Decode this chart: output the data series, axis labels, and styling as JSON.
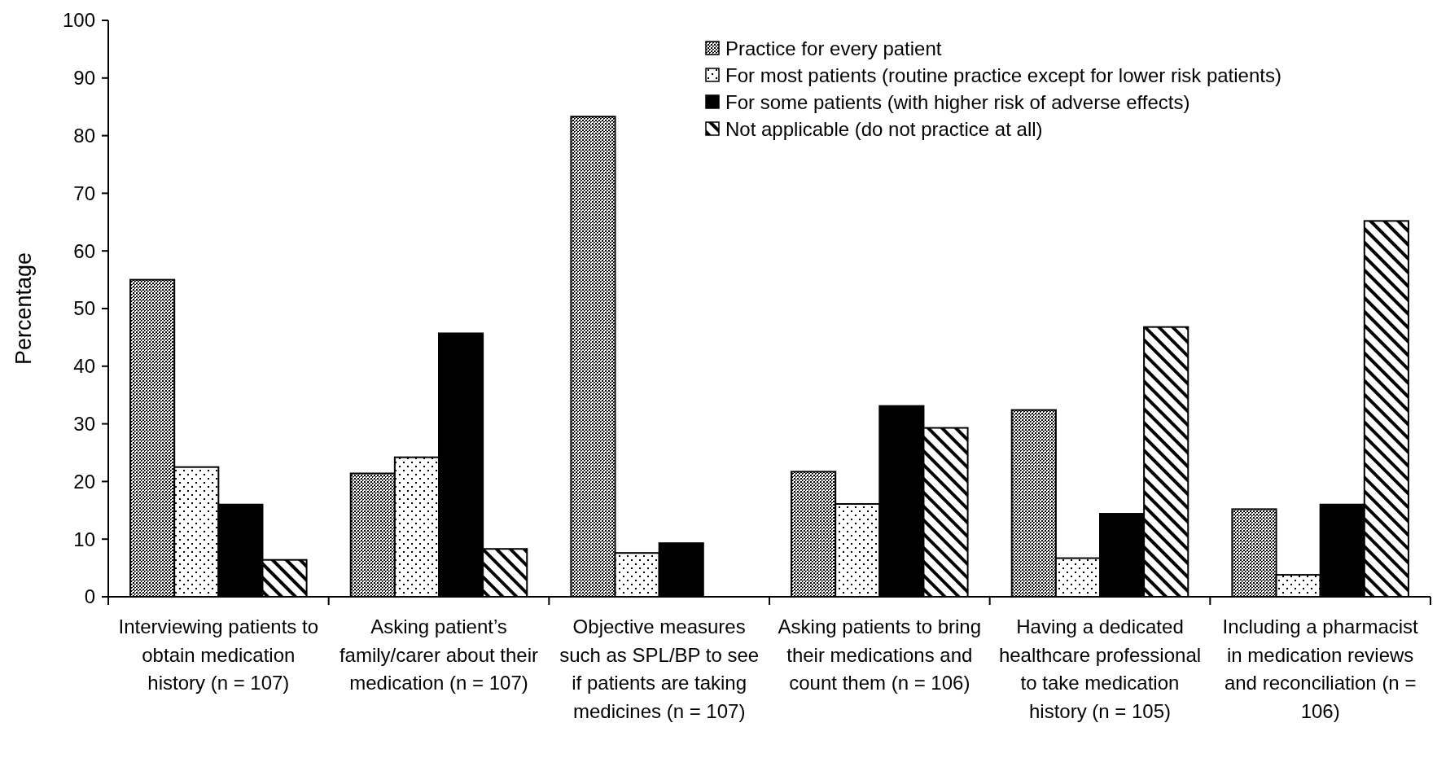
{
  "chart_data": {
    "type": "bar",
    "ylabel": "Percentage",
    "categories": [
      "Interviewing patients to obtain medication history (n = 107)",
      "Asking patient’s family/carer about their medication (n = 107)",
      "Objective measures such as SPL/BP to see if patients are taking medicines (n = 107)",
      "Asking patients to bring their medications and count them (n = 106)",
      "Having a dedicated healthcare professional to take medication history (n = 105)",
      "Including a pharmacist in medication reviews and reconciliation (n = 106)"
    ],
    "series": [
      {
        "name": "Practice for every patient",
        "color": "#000000",
        "values": [
          55.0,
          21.4,
          83.3,
          21.7,
          32.4,
          15.2
        ]
      },
      {
        "name": "For most patients (routine practice except for lower risk patients)",
        "color": "#000000",
        "values": [
          22.5,
          24.2,
          7.6,
          16.1,
          6.7,
          3.8
        ]
      },
      {
        "name": "For some patients (with higher risk of adverse effects)",
        "color": "#000000",
        "values": [
          16.0,
          45.7,
          9.3,
          33.1,
          14.4,
          16.0
        ]
      },
      {
        "name": "Not applicable (do not practice at all)",
        "color": "#000000",
        "values": [
          6.4,
          8.3,
          null,
          29.3,
          46.8,
          65.2
        ]
      }
    ],
    "ylim": [
      0,
      100
    ],
    "yticks": [
      0,
      10,
      20,
      30,
      40,
      50,
      60,
      70,
      80,
      90,
      100
    ],
    "grid": false,
    "legend": "top right"
  }
}
